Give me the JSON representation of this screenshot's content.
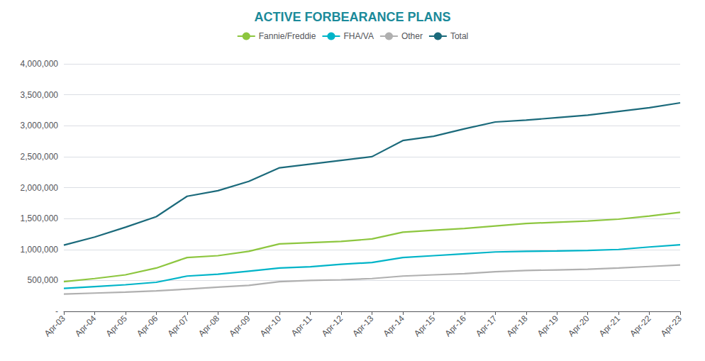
{
  "chart_data": {
    "type": "line",
    "title": "ACTIVE FORBEARANCE PLANS",
    "categories": [
      "Apr-03",
      "Apr-04",
      "Apr-05",
      "Apr-06",
      "Apr-07",
      "Apr-08",
      "Apr-09",
      "Apr-10",
      "Apr-11",
      "Apr-12",
      "Apr-13",
      "Apr-14",
      "Apr-15",
      "Apr-16",
      "Apr-17",
      "Apr-18",
      "Apr-19",
      "Apr-20",
      "Apr-21",
      "Apr-22",
      "Apr-23"
    ],
    "series": [
      {
        "name": "Fannie/Freddie",
        "color": "#8dc63f",
        "values": [
          480000,
          530000,
          590000,
          700000,
          870000,
          900000,
          970000,
          1090000,
          1110000,
          1130000,
          1170000,
          1280000,
          1310000,
          1340000,
          1380000,
          1420000,
          1440000,
          1460000,
          1490000,
          1540000,
          1600000
        ]
      },
      {
        "name": "FHA/VA",
        "color": "#00b4c8",
        "values": [
          370000,
          400000,
          430000,
          470000,
          570000,
          600000,
          650000,
          700000,
          720000,
          760000,
          790000,
          870000,
          900000,
          930000,
          960000,
          970000,
          975000,
          985000,
          1000000,
          1040000,
          1075000
        ]
      },
      {
        "name": "Other",
        "color": "#b0b0b0",
        "values": [
          280000,
          295000,
          310000,
          330000,
          360000,
          390000,
          420000,
          480000,
          500000,
          510000,
          530000,
          570000,
          590000,
          610000,
          640000,
          660000,
          670000,
          680000,
          700000,
          725000,
          750000
        ]
      },
      {
        "name": "Total",
        "color": "#1b6a7b",
        "values": [
          1070000,
          1200000,
          1360000,
          1530000,
          1860000,
          1950000,
          2100000,
          2320000,
          2380000,
          2440000,
          2500000,
          2760000,
          2830000,
          2950000,
          3060000,
          3090000,
          3130000,
          3170000,
          3230000,
          3290000,
          3370000
        ]
      }
    ],
    "ylim": [
      0,
      4000000
    ],
    "yticks": [
      {
        "value": 0,
        "label": "-"
      },
      {
        "value": 500000,
        "label": "500,000"
      },
      {
        "value": 1000000,
        "label": "1,000,000"
      },
      {
        "value": 1500000,
        "label": "1,500,000"
      },
      {
        "value": 2000000,
        "label": "2,000,000"
      },
      {
        "value": 2500000,
        "label": "2,500,000"
      },
      {
        "value": 3000000,
        "label": "3,000,000"
      },
      {
        "value": 3500000,
        "label": "3,500,000"
      },
      {
        "value": 4000000,
        "label": "4,000,000"
      }
    ],
    "grid": true,
    "legend": "top",
    "color": "#1b8a9a"
  }
}
